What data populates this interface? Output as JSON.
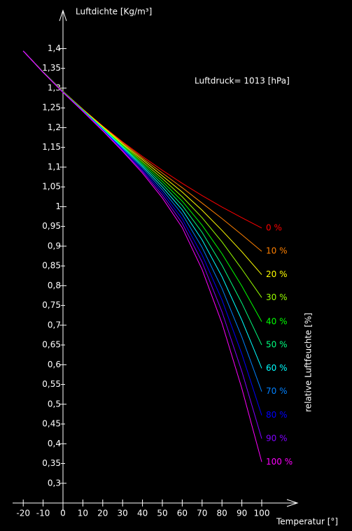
{
  "chart_data": {
    "type": "line",
    "title": "Luftdichte [Kg/m³]",
    "x_label": "Temperatur [°]",
    "annotation": "Luftdruck= 1013 [hPa]",
    "legend_title": "relative Luftfeuchte [%]",
    "x": [
      -20,
      -10,
      0,
      10,
      20,
      30,
      40,
      50,
      60,
      70,
      80,
      90,
      100
    ],
    "xlim": [
      -25,
      115
    ],
    "xticks": [
      -20,
      -10,
      0,
      10,
      20,
      30,
      40,
      50,
      60,
      70,
      80,
      90,
      100
    ],
    "ylim": [
      0.25,
      1.5
    ],
    "yticks": [
      {
        "value": 0.3,
        "label": "0,3"
      },
      {
        "value": 0.4,
        "label": "0,4"
      },
      {
        "value": 0.5,
        "label": "0,5"
      },
      {
        "value": 0.6,
        "label": "0,6"
      },
      {
        "value": 0.7,
        "label": "0,7"
      },
      {
        "value": 0.8,
        "label": "0,8"
      },
      {
        "value": 0.9,
        "label": "0,9"
      },
      {
        "value": 1,
        "label": "1"
      },
      {
        "value": 1.1,
        "label": "1,1"
      },
      {
        "value": 1.2,
        "label": "1,2"
      },
      {
        "value": 1.3,
        "label": "1,3"
      },
      {
        "value": 1.4,
        "label": "1,4"
      }
    ],
    "yticks_minor": [
      {
        "value": 0.35,
        "label": "0,35"
      },
      {
        "value": 0.45,
        "label": "0,45"
      },
      {
        "value": 0.55,
        "label": "0,55"
      },
      {
        "value": 0.65,
        "label": "0,65"
      },
      {
        "value": 0.75,
        "label": "0,75"
      },
      {
        "value": 0.85,
        "label": "0,85"
      },
      {
        "value": 0.95,
        "label": "0,95"
      },
      {
        "value": 1.05,
        "label": "1,05"
      },
      {
        "value": 1.15,
        "label": "1,15"
      },
      {
        "value": 1.25,
        "label": "1,25"
      },
      {
        "value": 1.35,
        "label": "1,35"
      }
    ],
    "series": [
      {
        "name": "0 %",
        "color": "#ff0000",
        "values": [
          1.394,
          1.341,
          1.292,
          1.247,
          1.204,
          1.164,
          1.127,
          1.092,
          1.059,
          1.028,
          0.999,
          0.972,
          0.946
        ]
      },
      {
        "name": "10 %",
        "color": "#ff8000",
        "values": [
          1.394,
          1.341,
          1.292,
          1.246,
          1.203,
          1.162,
          1.123,
          1.085,
          1.048,
          1.009,
          0.97,
          0.929,
          0.887
        ]
      },
      {
        "name": "20 %",
        "color": "#ffff00",
        "values": [
          1.394,
          1.341,
          1.291,
          1.246,
          1.202,
          1.159,
          1.119,
          1.078,
          1.037,
          0.991,
          0.94,
          0.886,
          0.828
        ]
      },
      {
        "name": "30 %",
        "color": "#99ff00",
        "values": [
          1.394,
          1.341,
          1.291,
          1.245,
          1.2,
          1.157,
          1.114,
          1.071,
          1.025,
          0.972,
          0.911,
          0.842,
          0.77
        ]
      },
      {
        "name": "40 %",
        "color": "#00ff00",
        "values": [
          1.394,
          1.341,
          1.291,
          1.245,
          1.199,
          1.154,
          1.11,
          1.064,
          1.014,
          0.953,
          0.881,
          0.799,
          0.709
        ]
      },
      {
        "name": "50 %",
        "color": "#00ff80",
        "values": [
          1.394,
          1.34,
          1.29,
          1.244,
          1.198,
          1.152,
          1.106,
          1.057,
          1.003,
          0.935,
          0.852,
          0.756,
          0.65
        ]
      },
      {
        "name": "60 %",
        "color": "#00ffff",
        "values": [
          1.394,
          1.34,
          1.29,
          1.243,
          1.197,
          1.15,
          1.102,
          1.05,
          0.992,
          0.916,
          0.823,
          0.713,
          0.591
        ]
      },
      {
        "name": "70 %",
        "color": "#0080ff",
        "values": [
          1.394,
          1.34,
          1.29,
          1.243,
          1.196,
          1.147,
          1.098,
          1.043,
          0.981,
          0.897,
          0.793,
          0.67,
          0.532
        ]
      },
      {
        "name": "80 %",
        "color": "#0000ff",
        "values": [
          1.394,
          1.34,
          1.29,
          1.242,
          1.194,
          1.145,
          1.093,
          1.036,
          0.969,
          0.878,
          0.764,
          0.627,
          0.472
        ]
      },
      {
        "name": "90 %",
        "color": "#8000ff",
        "values": [
          1.394,
          1.34,
          1.289,
          1.242,
          1.193,
          1.142,
          1.089,
          1.029,
          0.958,
          0.86,
          0.734,
          0.583,
          0.413
        ]
      },
      {
        "name": "100 %",
        "color": "#ff00ff",
        "values": [
          1.394,
          1.34,
          1.289,
          1.241,
          1.192,
          1.14,
          1.085,
          1.022,
          0.947,
          0.841,
          0.705,
          0.54,
          0.354
        ]
      }
    ]
  }
}
